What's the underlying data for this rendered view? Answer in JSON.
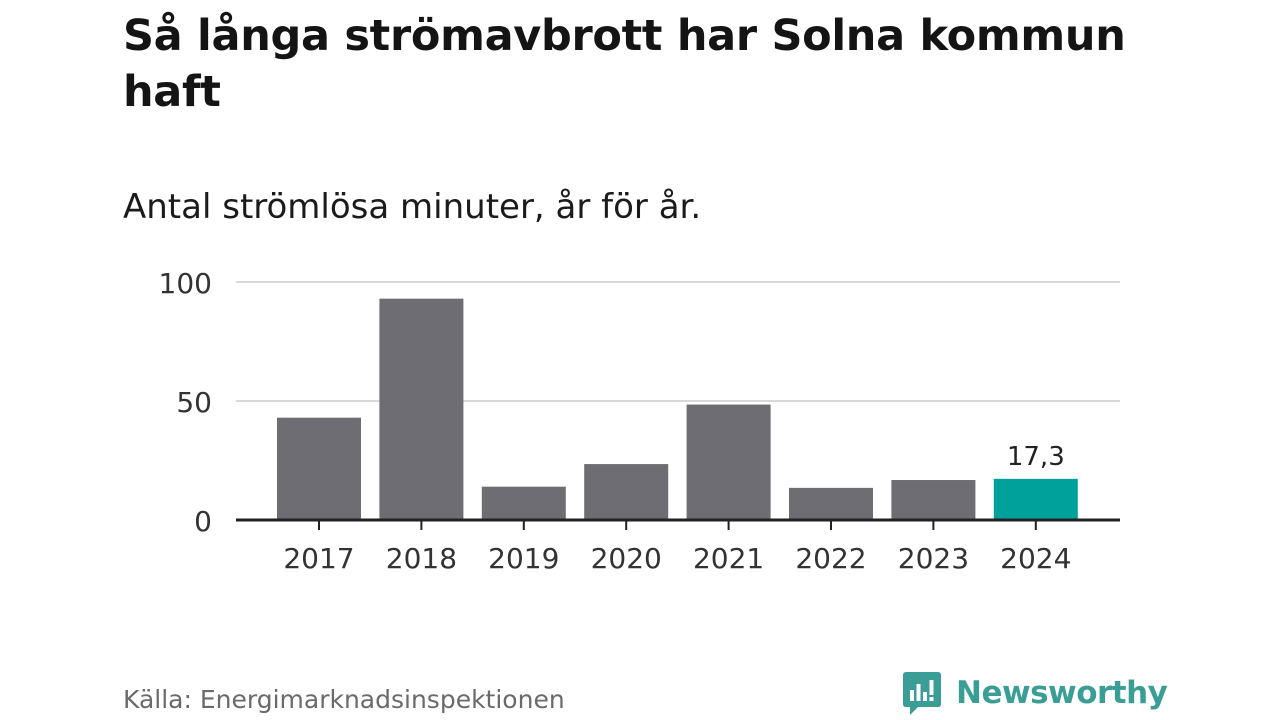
{
  "title": "Så långa strömavbrott har Solna kommun haft",
  "subtitle": "Antal strömlösa minuter, år för år.",
  "source": "Källa: Energimarknadsinspektionen",
  "brand": {
    "name": "Newsworthy",
    "color": "#3a9e97"
  },
  "colors": {
    "bar": "#6e6d73",
    "highlight": "#00a19a",
    "grid": "#d9d9d9",
    "axis": "#222222"
  },
  "chart_data": {
    "type": "bar",
    "categories": [
      "2017",
      "2018",
      "2019",
      "2020",
      "2021",
      "2022",
      "2023",
      "2024"
    ],
    "values": [
      43,
      93,
      14,
      23.5,
      48.5,
      13.5,
      16.8,
      17.3
    ],
    "highlight_index": 7,
    "data_labels": [
      {
        "index": 7,
        "text": "17,3"
      }
    ],
    "yticks": [
      0,
      50,
      100
    ],
    "ylim": [
      0,
      100
    ],
    "grid": true
  }
}
